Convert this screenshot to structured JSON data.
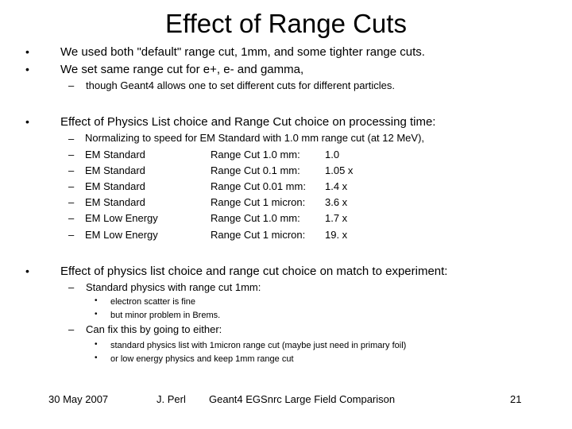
{
  "title": "Effect of Range Cuts",
  "bullets": {
    "b1": "We used both \"default\" range cut, 1mm, and some tighter range cuts.",
    "b2": "We set same range cut for e+, e- and gamma,",
    "b2_sub": "though Geant4 allows one to set different cuts for different particles.",
    "b3": "Effect of Physics List choice and Range Cut choice on processing time:",
    "b3_intro": "Normalizing to speed for EM Standard with 1.0 mm range cut (at 12 MeV),",
    "timing_rows": [
      {
        "physics": "EM Standard",
        "cut": "Range Cut 1.0 mm:",
        "factor": "1.0"
      },
      {
        "physics": "EM Standard",
        "cut": "Range Cut 0.1 mm:",
        "factor": "1.05 x"
      },
      {
        "physics": "EM Standard",
        "cut": "Range Cut 0.01 mm:",
        "factor": "1.4 x"
      },
      {
        "physics": "EM Standard",
        "cut": "Range Cut 1 micron:",
        "factor": "3.6 x"
      },
      {
        "physics": "EM Low Energy",
        "cut": "Range Cut 1.0 mm:",
        "factor": "1.7 x"
      },
      {
        "physics": "EM Low Energy",
        "cut": "Range Cut 1 micron:",
        "factor": "19. x"
      }
    ],
    "b4": "Effect of physics list choice and range cut choice on match to experiment:",
    "b4_sub1": "Standard physics with range cut 1mm:",
    "b4_sub1_items": [
      "electron scatter is fine",
      "but minor problem in Brems."
    ],
    "b4_sub2": "Can fix this by going to either:",
    "b4_sub2_items": [
      "standard physics list with 1micron range cut (maybe just need in primary foil)",
      "or low energy physics and keep 1mm range cut"
    ]
  },
  "symbols": {
    "bullet": "•",
    "dash": "–"
  },
  "footer": {
    "date": "30 May 2007",
    "author": "J. Perl",
    "talk": "Geant4 EGSnrc Large Field Comparison",
    "page": "21"
  }
}
